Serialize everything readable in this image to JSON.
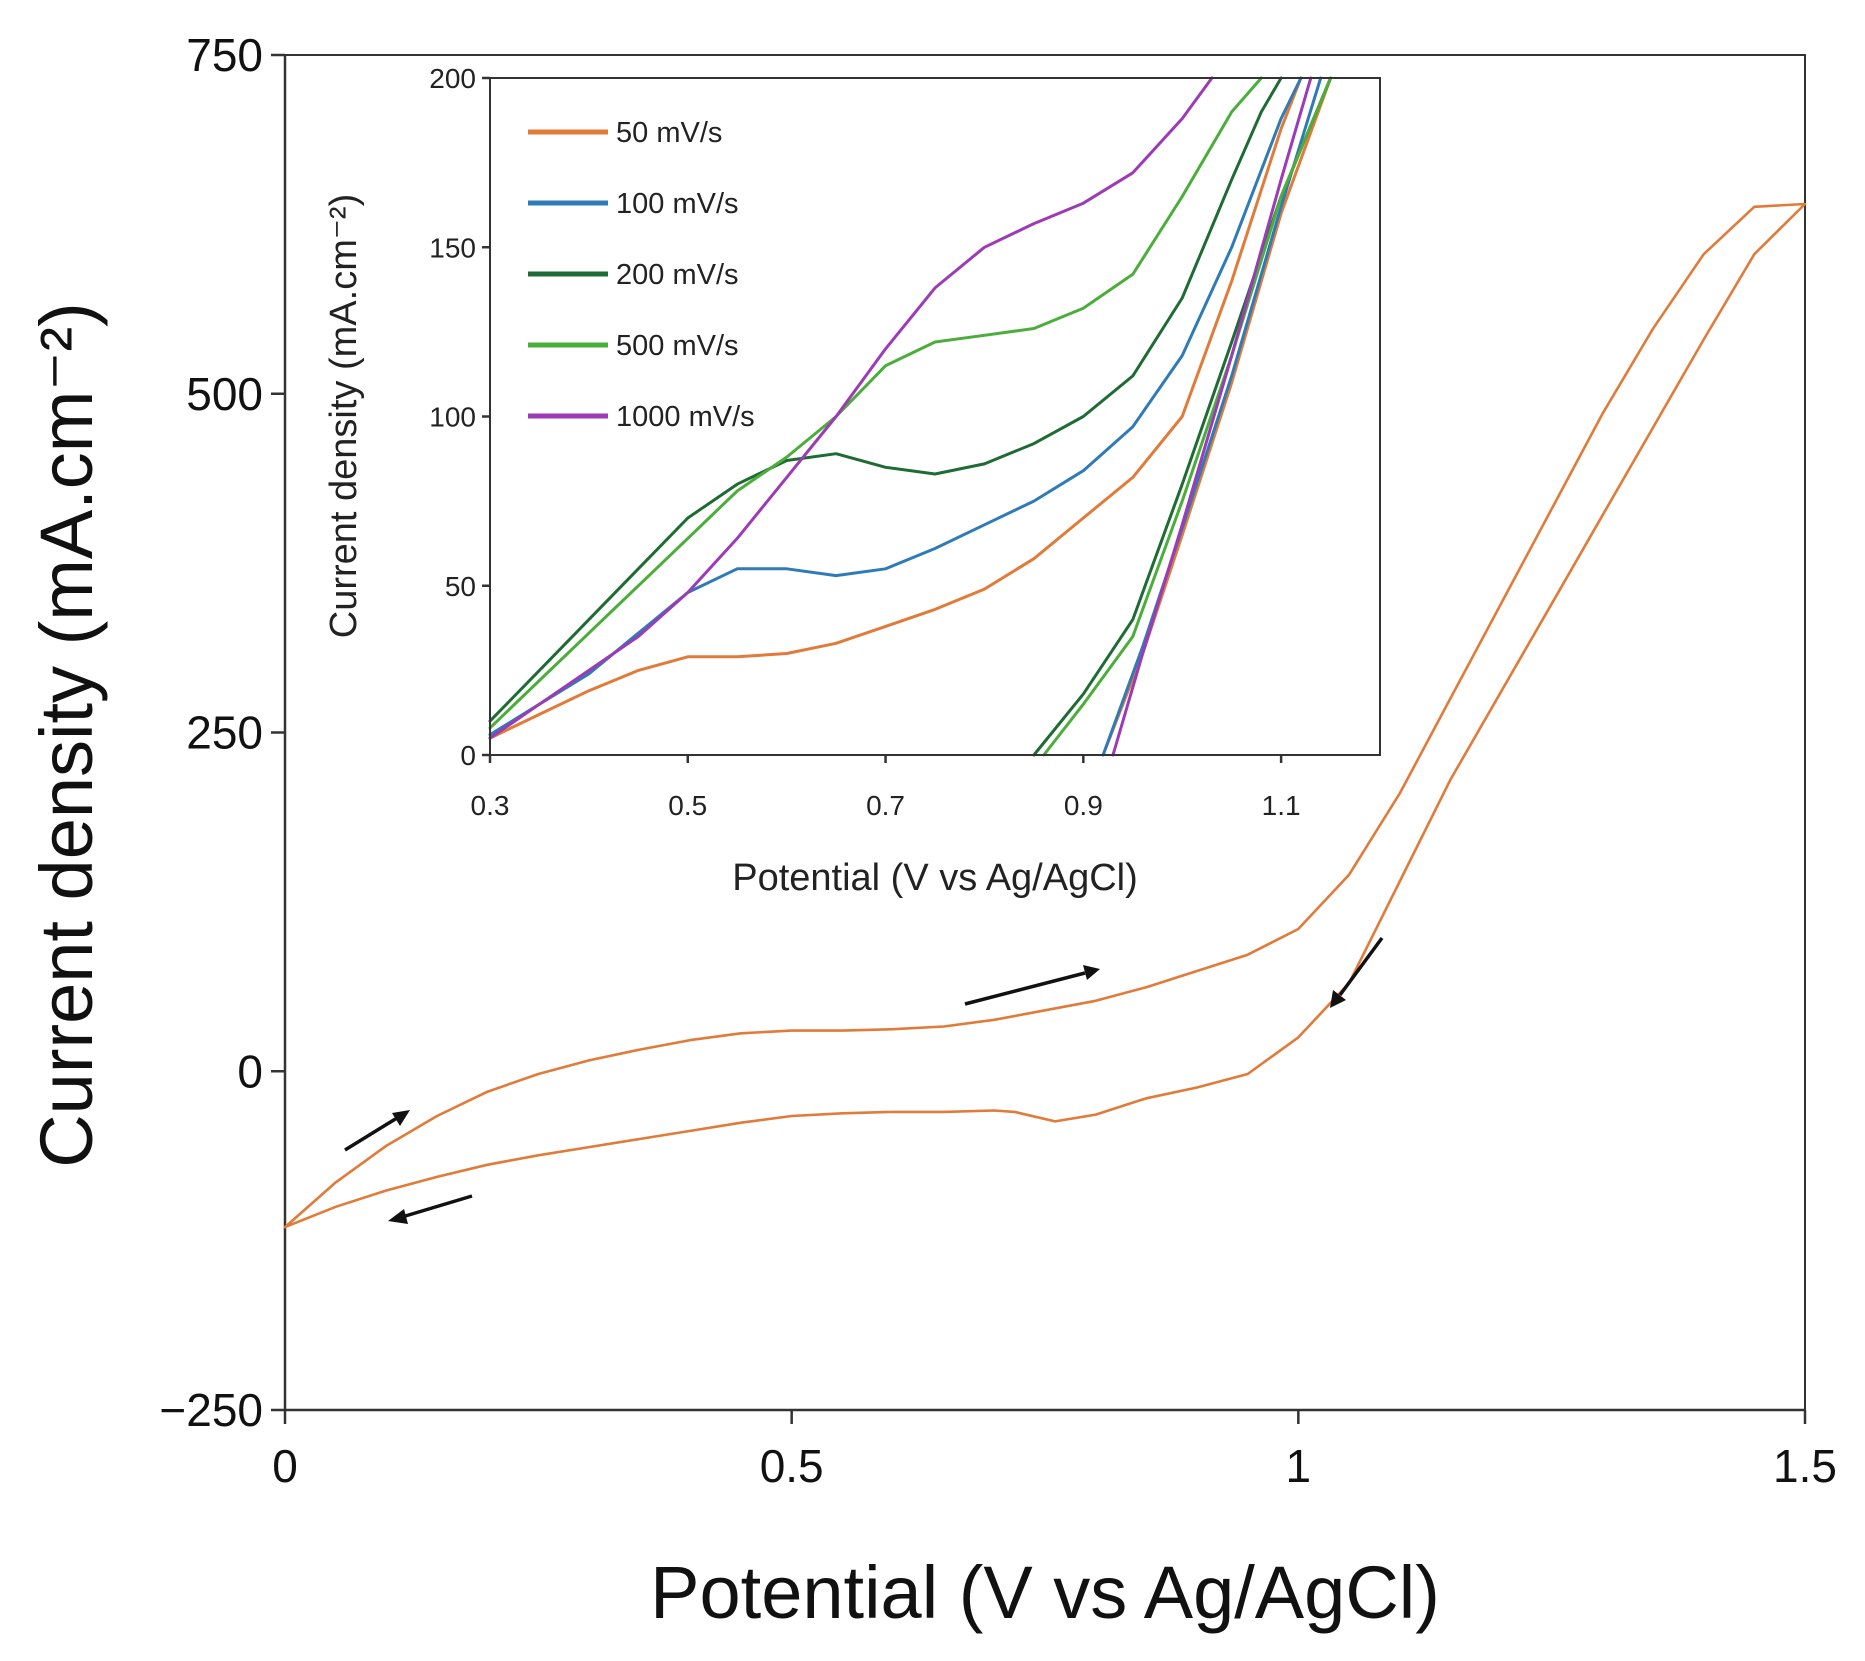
{
  "chart_data": [
    {
      "type": "line",
      "name": "main-cv",
      "title": "",
      "xlabel": "Potential (V vs Ag/AgCl)",
      "ylabel": "Current density (mA.cm⁻²)",
      "xlim": [
        0,
        1.5
      ],
      "ylim": [
        -250,
        750
      ],
      "xticks": [
        0,
        0.5,
        1,
        1.5
      ],
      "xtick_labels": [
        "0",
        "0.5",
        "1",
        "1.5"
      ],
      "yticks": [
        -250,
        0,
        250,
        500,
        750
      ],
      "ytick_labels": [
        "−250",
        "0",
        "250",
        "500",
        "750"
      ],
      "grid": false,
      "series": [
        {
          "name": "50 mV/s",
          "color": "#E07B39",
          "x": [
            0,
            0.05,
            0.1,
            0.15,
            0.2,
            0.25,
            0.3,
            0.35,
            0.4,
            0.45,
            0.5,
            0.55,
            0.6,
            0.65,
            0.7,
            0.75,
            0.8,
            0.85,
            0.9,
            0.95,
            1.0,
            1.05,
            1.1,
            1.15,
            1.2,
            1.25,
            1.3,
            1.35,
            1.4,
            1.45,
            1.5,
            1.45,
            1.4,
            1.35,
            1.3,
            1.25,
            1.2,
            1.15,
            1.1,
            1.05,
            1.0,
            0.95,
            0.9,
            0.85,
            0.8,
            0.76,
            0.72,
            0.7,
            0.65,
            0.6,
            0.55,
            0.5,
            0.45,
            0.4,
            0.35,
            0.3,
            0.25,
            0.2,
            0.15,
            0.1,
            0.05,
            0
          ],
          "y": [
            -115,
            -82,
            -55,
            -33,
            -15,
            -2,
            8,
            16,
            23,
            28,
            30,
            30,
            31,
            33,
            38,
            45,
            52,
            62,
            74,
            86,
            105,
            145,
            205,
            275,
            345,
            415,
            485,
            548,
            603,
            638,
            640,
            603,
            540,
            475,
            410,
            345,
            280,
            215,
            140,
            65,
            25,
            -2,
            -12,
            -20,
            -32,
            -37,
            -30,
            -29,
            -30,
            -30,
            -31,
            -33,
            -38,
            -44,
            -50,
            -56,
            -62,
            -69,
            -78,
            -88,
            -100,
            -115
          ]
        }
      ],
      "annotations": [
        "forward-scan arrow near 0.1 V",
        "reverse-scan arrow near 0.15 V",
        "forward-scan arrow near 0.75 V",
        "reverse-scan arrow near 1.05 V"
      ]
    },
    {
      "type": "line",
      "name": "inset",
      "title": "",
      "xlabel": "Potential (V vs Ag/AgCl)",
      "ylabel": "Current density (mA.cm⁻²)",
      "xlim": [
        0.3,
        1.2
      ],
      "ylim": [
        0,
        200
      ],
      "xticks": [
        0.3,
        0.5,
        0.7,
        0.9,
        1.1
      ],
      "xtick_labels": [
        "0.3",
        "0.5",
        "0.7",
        "0.9",
        "1.1"
      ],
      "yticks": [
        0,
        50,
        100,
        150,
        200
      ],
      "ytick_labels": [
        "0",
        "50",
        "100",
        "150",
        "200"
      ],
      "grid": false,
      "legend_position": "top-left",
      "series": [
        {
          "name": "50 mV/s",
          "color": "#E07B39",
          "forward": {
            "x": [
              0.3,
              0.35,
              0.4,
              0.45,
              0.5,
              0.55,
              0.6,
              0.65,
              0.7,
              0.75,
              0.8,
              0.85,
              0.9,
              0.95,
              1.0,
              1.05,
              1.1,
              1.12
            ],
            "y": [
              5,
              12,
              19,
              25,
              29,
              29,
              30,
              33,
              38,
              43,
              49,
              58,
              70,
              82,
              100,
              140,
              185,
              200
            ]
          },
          "return": {
            "x": [
              1.15,
              1.1,
              1.05,
              1.0,
              0.96,
              0.92
            ],
            "y": [
              200,
              160,
              110,
              65,
              30,
              0
            ]
          }
        },
        {
          "name": "100 mV/s",
          "color": "#2E7BB8",
          "forward": {
            "x": [
              0.3,
              0.35,
              0.4,
              0.45,
              0.5,
              0.55,
              0.6,
              0.65,
              0.7,
              0.75,
              0.8,
              0.85,
              0.9,
              0.95,
              1.0,
              1.05,
              1.1,
              1.12
            ],
            "y": [
              6,
              15,
              24,
              36,
              48,
              55,
              55,
              53,
              55,
              61,
              68,
              75,
              84,
              97,
              118,
              150,
              188,
              200
            ]
          },
          "return": {
            "x": [
              1.14,
              1.1,
              1.05,
              1.0,
              0.96,
              0.92
            ],
            "y": [
              200,
              162,
              112,
              67,
              32,
              0
            ]
          }
        },
        {
          "name": "200 mV/s",
          "color": "#1E6B33",
          "forward": {
            "x": [
              0.3,
              0.35,
              0.4,
              0.45,
              0.5,
              0.55,
              0.6,
              0.65,
              0.7,
              0.75,
              0.8,
              0.85,
              0.9,
              0.95,
              1.0,
              1.05,
              1.08,
              1.1
            ],
            "y": [
              10,
              25,
              40,
              55,
              70,
              80,
              87,
              89,
              85,
              83,
              86,
              92,
              100,
              112,
              135,
              170,
              190,
              200
            ]
          },
          "return": {
            "x": [
              1.15,
              1.1,
              1.05,
              1.0,
              0.95,
              0.9,
              0.85
            ],
            "y": [
              200,
              165,
              122,
              80,
              40,
              18,
              0
            ]
          }
        },
        {
          "name": "500 mV/s",
          "color": "#4BAE3B",
          "forward": {
            "x": [
              0.3,
              0.35,
              0.4,
              0.45,
              0.5,
              0.55,
              0.6,
              0.65,
              0.7,
              0.75,
              0.8,
              0.85,
              0.9,
              0.95,
              1.0,
              1.05,
              1.08
            ],
            "y": [
              8,
              22,
              36,
              50,
              64,
              78,
              88,
              100,
              115,
              122,
              124,
              126,
              132,
              142,
              165,
              190,
              200
            ]
          },
          "return": {
            "x": [
              1.15,
              1.1,
              1.05,
              1.0,
              0.95,
              0.9,
              0.86
            ],
            "y": [
              200,
              165,
              118,
              75,
              35,
              15,
              0
            ]
          }
        },
        {
          "name": "1000 mV/s",
          "color": "#9C3BB5",
          "forward": {
            "x": [
              0.3,
              0.35,
              0.4,
              0.45,
              0.5,
              0.55,
              0.6,
              0.65,
              0.7,
              0.75,
              0.8,
              0.85,
              0.9,
              0.95,
              1.0,
              1.03
            ],
            "y": [
              5,
              15,
              25,
              35,
              48,
              64,
              82,
              100,
              120,
              138,
              150,
              157,
              163,
              172,
              188,
              200
            ]
          },
          "return": {
            "x": [
              1.13,
              1.1,
              1.05,
              1.0,
              0.96,
              0.93
            ],
            "y": [
              200,
              170,
              118,
              68,
              30,
              0
            ]
          }
        }
      ]
    }
  ]
}
